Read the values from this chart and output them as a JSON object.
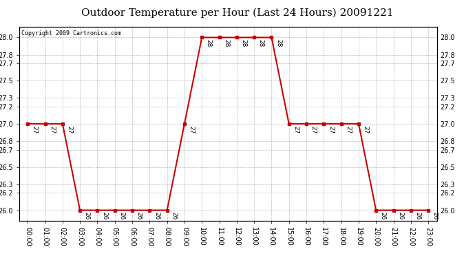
{
  "title": "Outdoor Temperature per Hour (Last 24 Hours) 20091221",
  "copyright_text": "Copyright 2009 Cartronics.com",
  "hours": [
    "00:00",
    "01:00",
    "02:00",
    "03:00",
    "04:00",
    "05:00",
    "06:00",
    "07:00",
    "08:00",
    "09:00",
    "10:00",
    "11:00",
    "12:00",
    "13:00",
    "14:00",
    "15:00",
    "16:00",
    "17:00",
    "18:00",
    "19:00",
    "20:00",
    "21:00",
    "22:00",
    "23:00"
  ],
  "temperatures": [
    27,
    27,
    27,
    26,
    26,
    26,
    26,
    26,
    26,
    27,
    28,
    28,
    28,
    28,
    28,
    27,
    27,
    27,
    27,
    27,
    26,
    26,
    26,
    26
  ],
  "line_color": "#cc0000",
  "bg_color": "#ffffff",
  "grid_color": "#aaaaaa",
  "ylim_min": 25.88,
  "ylim_max": 28.12,
  "yticks": [
    26.0,
    26.2,
    26.3,
    26.5,
    26.7,
    26.8,
    27.0,
    27.2,
    27.3,
    27.5,
    27.7,
    27.8,
    28.0
  ],
  "title_fontsize": 11,
  "label_fontsize": 7,
  "annotation_fontsize": 6.5,
  "copyright_fontsize": 6
}
